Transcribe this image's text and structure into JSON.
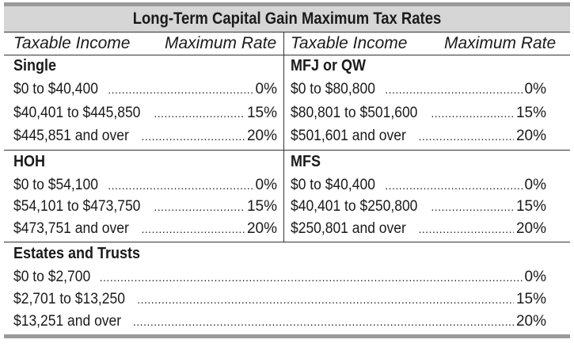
{
  "title": "Long-Term Capital Gain Maximum Tax Rates",
  "headers": {
    "left_income": "Taxable Income",
    "left_rate": "Maximum Rate",
    "right_income": "Taxable Income",
    "right_rate": "Maximum Rate"
  },
  "single": {
    "label": "Single",
    "rows": [
      {
        "income": "$0 to $40,400",
        "rate": "0%"
      },
      {
        "income": "$40,401 to $445,850",
        "rate": "15%"
      },
      {
        "income": "$445,851 and over",
        "rate": "20%"
      }
    ]
  },
  "mfj": {
    "label": "MFJ or QW",
    "rows": [
      {
        "income": "$0 to $80,800",
        "rate": "0%"
      },
      {
        "income": "$80,801 to $501,600",
        "rate": "15%"
      },
      {
        "income": "$501,601 and over",
        "rate": "20%"
      }
    ]
  },
  "hoh": {
    "label": "HOH",
    "rows": [
      {
        "income": "$0 to $54,100",
        "rate": "0%"
      },
      {
        "income": "$54,101 to $473,750",
        "rate": "15%"
      },
      {
        "income": "$473,751 and over",
        "rate": "20%"
      }
    ]
  },
  "mfs": {
    "label": "MFS",
    "rows": [
      {
        "income": "$0 to $40,400",
        "rate": "0%"
      },
      {
        "income": "$40,401 to $250,800",
        "rate": "15%"
      },
      {
        "income": "$250,801 and over",
        "rate": "20%"
      }
    ]
  },
  "estates": {
    "label": "Estates and Trusts",
    "rows": [
      {
        "income": "$0 to $2,700",
        "rate": "0%"
      },
      {
        "income": "$2,701 to $13,250",
        "rate": "15%"
      },
      {
        "income": "$13,251 and over",
        "rate": "20%"
      }
    ]
  }
}
